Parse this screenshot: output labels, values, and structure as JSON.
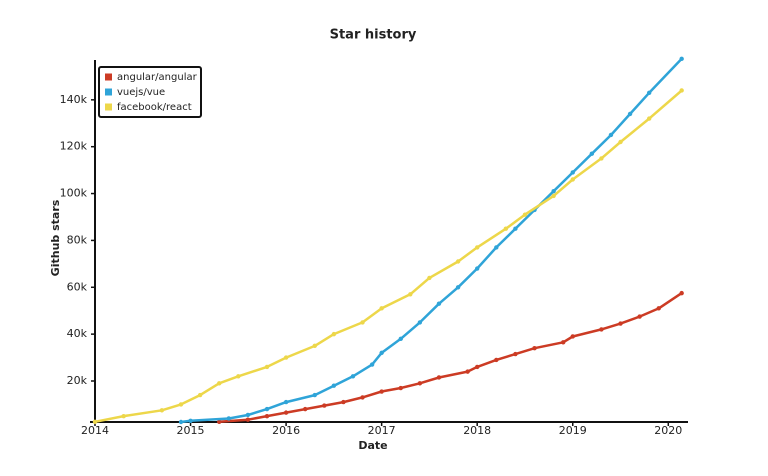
{
  "chart_data": {
    "type": "line",
    "title": "Star history",
    "x_label": "Date",
    "y_label": "Github stars",
    "xlim": [
      2014,
      2020.2
    ],
    "xticks": [
      2014,
      2015,
      2016,
      2017,
      2018,
      2019,
      2020
    ],
    "ylim": [
      2500,
      157000
    ],
    "yticks": [
      {
        "value": 20000,
        "label": "20k"
      },
      {
        "value": 40000,
        "label": "40k"
      },
      {
        "value": 60000,
        "label": "60k"
      },
      {
        "value": 80000,
        "label": "80k"
      },
      {
        "value": 100000,
        "label": "100k"
      },
      {
        "value": 120000,
        "label": "120k"
      },
      {
        "value": 140000,
        "label": "140k"
      }
    ],
    "legend": "upper left",
    "series": [
      {
        "name": "angular/angular",
        "color": "#cc3b24",
        "x": [
          2015.3,
          2015.6,
          2015.8,
          2016.0,
          2016.2,
          2016.4,
          2016.6,
          2016.8,
          2017.0,
          2017.2,
          2017.4,
          2017.6,
          2017.9,
          2018.0,
          2018.2,
          2018.4,
          2018.6,
          2018.9,
          2019.0,
          2019.3,
          2019.5,
          2019.7,
          2019.9,
          2020.14
        ],
        "values": [
          2600,
          3500,
          5000,
          6500,
          8000,
          9500,
          11000,
          13000,
          15500,
          17000,
          19000,
          21500,
          24000,
          26000,
          29000,
          31500,
          34000,
          36500,
          39000,
          42000,
          44500,
          47500,
          51000,
          57500
        ]
      },
      {
        "name": "vuejs/vue",
        "color": "#2fa4d8",
        "x": [
          2014.9,
          2015.0,
          2015.4,
          2015.6,
          2015.8,
          2016.0,
          2016.3,
          2016.5,
          2016.7,
          2016.9,
          2017.0,
          2017.2,
          2017.4,
          2017.6,
          2017.8,
          2018.0,
          2018.2,
          2018.4,
          2018.6,
          2018.8,
          2019.0,
          2019.2,
          2019.4,
          2019.6,
          2019.8,
          2020.14
        ],
        "values": [
          2500,
          3000,
          4000,
          5500,
          8000,
          11000,
          14000,
          18000,
          22000,
          27000,
          32000,
          38000,
          45000,
          53000,
          60000,
          68000,
          77000,
          85000,
          93000,
          101000,
          109000,
          117000,
          125000,
          134000,
          143000,
          157500
        ]
      },
      {
        "name": "facebook/react",
        "color": "#edd74a",
        "x": [
          2014.0,
          2014.3,
          2014.7,
          2014.9,
          2015.1,
          2015.3,
          2015.5,
          2015.8,
          2016.0,
          2016.3,
          2016.5,
          2016.8,
          2017.0,
          2017.3,
          2017.5,
          2017.8,
          2018.0,
          2018.3,
          2018.5,
          2018.8,
          2019.0,
          2019.3,
          2019.5,
          2019.8,
          2020.14
        ],
        "values": [
          2600,
          5000,
          7500,
          10000,
          14000,
          19000,
          22000,
          26000,
          30000,
          35000,
          40000,
          45000,
          51000,
          57000,
          64000,
          71000,
          77000,
          85000,
          91000,
          99000,
          106000,
          115000,
          122000,
          132000,
          144000
        ]
      }
    ]
  }
}
